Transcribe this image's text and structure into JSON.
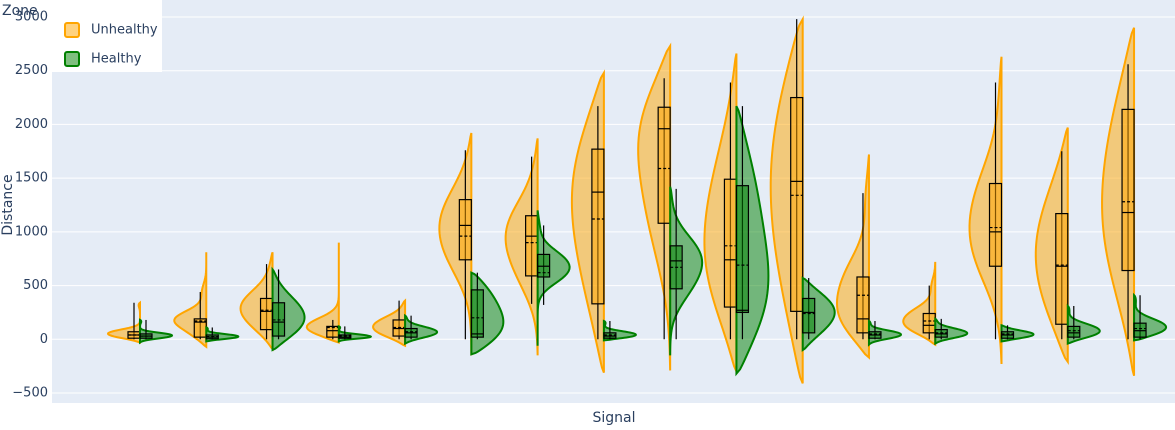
{
  "chart_data": {
    "type": "violin",
    "x_label": "Signal",
    "y_label": "Distance",
    "legend_title": "Zone",
    "legend_position": "top-left",
    "grid": true,
    "categories": [
      null,
      null,
      null,
      null,
      null,
      null,
      null,
      null,
      null,
      null,
      null,
      null,
      null,
      null,
      null,
      null
    ],
    "ylim": [
      -500,
      3000
    ],
    "yticks": [
      {
        "value": -500,
        "label": "−500"
      },
      0,
      500,
      1000,
      1500,
      2000,
      2500,
      3000
    ],
    "series": [
      {
        "name": "Unhealthy",
        "color": "#FFA500",
        "side": "negative",
        "stats": [
          {
            "span": [
              -30,
              340
            ],
            "min": 0,
            "q1": 10,
            "median": 40,
            "mean": 40,
            "q3": 70,
            "max": 340
          },
          {
            "span": [
              -70,
              810
            ],
            "min": 0,
            "q1": 20,
            "median": 160,
            "mean": 170,
            "q3": 190,
            "max": 440
          },
          {
            "span": [
              -90,
              810
            ],
            "min": 0,
            "q1": 90,
            "median": 260,
            "mean": 270,
            "q3": 380,
            "max": 700
          },
          {
            "span": [
              -30,
              900
            ],
            "min": 0,
            "q1": 20,
            "median": 80,
            "mean": 110,
            "q3": 120,
            "max": 180
          },
          {
            "span": [
              -60,
              360
            ],
            "min": 0,
            "q1": 30,
            "median": 100,
            "mean": 110,
            "q3": 180,
            "max": 360
          },
          {
            "span": [
              -150,
              1920
            ],
            "min": 0,
            "q1": 740,
            "median": 1060,
            "mean": 960,
            "q3": 1300,
            "max": 1760
          },
          {
            "span": [
              -150,
              1870
            ],
            "min": 330,
            "q1": 590,
            "median": 960,
            "mean": 900,
            "q3": 1150,
            "max": 1700
          },
          {
            "span": [
              -310,
              2480
            ],
            "min": 0,
            "q1": 330,
            "median": 1370,
            "mean": 1120,
            "q3": 1770,
            "max": 2170
          },
          {
            "span": [
              -290,
              2730
            ],
            "min": 0,
            "q1": 1080,
            "median": 1960,
            "mean": 1590,
            "q3": 2160,
            "max": 2430
          },
          {
            "span": [
              -300,
              2660
            ],
            "min": 0,
            "q1": 300,
            "median": 740,
            "mean": 870,
            "q3": 1490,
            "max": 2390
          },
          {
            "span": [
              -410,
              2980
            ],
            "min": 0,
            "q1": 260,
            "median": 1470,
            "mean": 1340,
            "q3": 2250,
            "max": 2980
          },
          {
            "span": [
              -170,
              1720
            ],
            "min": 0,
            "q1": 60,
            "median": 190,
            "mean": 410,
            "q3": 580,
            "max": 1360
          },
          {
            "span": [
              -50,
              720
            ],
            "min": 0,
            "q1": 60,
            "median": 130,
            "mean": 170,
            "q3": 240,
            "max": 500
          },
          {
            "span": [
              -230,
              2630
            ],
            "min": 0,
            "q1": 680,
            "median": 1000,
            "mean": 1040,
            "q3": 1450,
            "max": 2390
          },
          {
            "span": [
              -210,
              1970
            ],
            "min": 0,
            "q1": 140,
            "median": 680,
            "mean": 690,
            "q3": 1170,
            "max": 1750
          },
          {
            "span": [
              -340,
              2900
            ],
            "min": 0,
            "q1": 640,
            "median": 1180,
            "mean": 1280,
            "q3": 2140,
            "max": 2560
          }
        ]
      },
      {
        "name": "Healthy",
        "color": "#008000",
        "side": "positive",
        "stats": [
          {
            "span": [
              -30,
              180
            ],
            "min": 0,
            "q1": 10,
            "median": 30,
            "mean": 30,
            "q3": 50,
            "max": 180
          },
          {
            "span": [
              -20,
              110
            ],
            "min": 0,
            "q1": 5,
            "median": 20,
            "mean": 25,
            "q3": 40,
            "max": 110
          },
          {
            "span": [
              -100,
              650
            ],
            "min": 0,
            "q1": 30,
            "median": 160,
            "mean": 180,
            "q3": 340,
            "max": 650
          },
          {
            "span": [
              -20,
              120
            ],
            "min": 0,
            "q1": 10,
            "median": 20,
            "mean": 30,
            "q3": 40,
            "max": 120
          },
          {
            "span": [
              -40,
              220
            ],
            "min": 0,
            "q1": 20,
            "median": 60,
            "mean": 70,
            "q3": 100,
            "max": 220
          },
          {
            "span": [
              -140,
              620
            ],
            "min": 0,
            "q1": 20,
            "median": 50,
            "mean": 200,
            "q3": 460,
            "max": 620
          },
          {
            "span": [
              -60,
              1200
            ],
            "min": 320,
            "q1": 580,
            "median": 680,
            "mean": 620,
            "q3": 790,
            "max": 1060
          },
          {
            "span": [
              -10,
              170
            ],
            "min": 0,
            "q1": 10,
            "median": 30,
            "mean": 40,
            "q3": 60,
            "max": 170
          },
          {
            "span": [
              -150,
              1420
            ],
            "min": 0,
            "q1": 470,
            "median": 730,
            "mean": 670,
            "q3": 870,
            "max": 1400
          },
          {
            "span": [
              -320,
              2170
            ],
            "min": 0,
            "q1": 250,
            "median": 270,
            "mean": 690,
            "q3": 1430,
            "max": 2170
          },
          {
            "span": [
              -100,
              570
            ],
            "min": 0,
            "q1": 60,
            "median": 250,
            "mean": 240,
            "q3": 380,
            "max": 570
          },
          {
            "span": [
              -50,
              170
            ],
            "min": 0,
            "q1": 10,
            "median": 40,
            "mean": 50,
            "q3": 70,
            "max": 170
          },
          {
            "span": [
              -40,
              190
            ],
            "min": 0,
            "q1": 20,
            "median": 50,
            "mean": 60,
            "q3": 90,
            "max": 190
          },
          {
            "span": [
              -20,
              130
            ],
            "min": 0,
            "q1": 10,
            "median": 40,
            "mean": 50,
            "q3": 70,
            "max": 130
          },
          {
            "span": [
              -40,
              310
            ],
            "min": 0,
            "q1": 20,
            "median": 60,
            "mean": 80,
            "q3": 120,
            "max": 310
          },
          {
            "span": [
              -10,
              410
            ],
            "min": 0,
            "q1": 20,
            "median": 80,
            "mean": 100,
            "q3": 150,
            "max": 410
          }
        ]
      }
    ]
  }
}
